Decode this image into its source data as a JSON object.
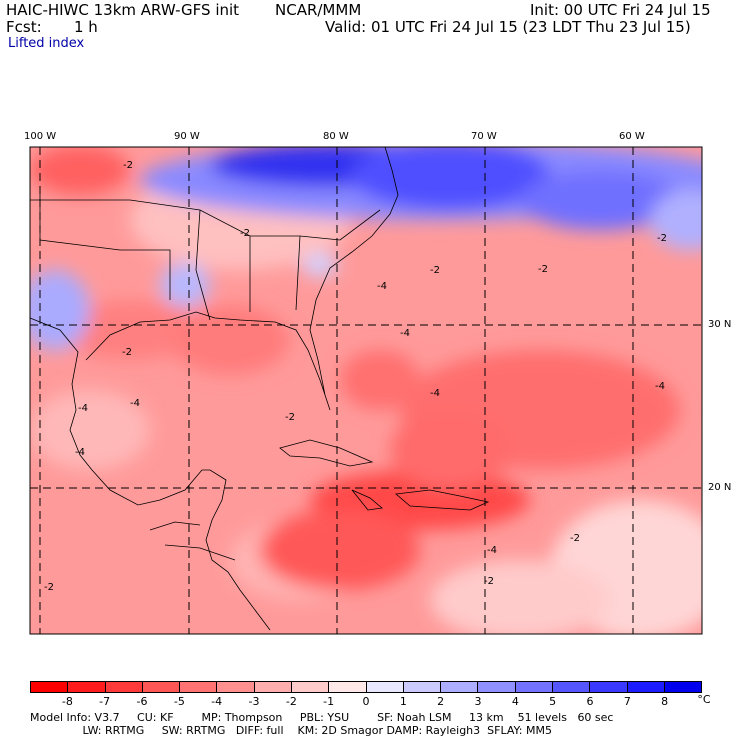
{
  "header": {
    "model": "HAIC-HIWC 13km ARW-GFS init",
    "org": "NCAR/MMM",
    "fcst_label": "Fcst:",
    "fcst_value": "1 h",
    "init": "Init: 00 UTC Fri 24 Jul 15",
    "valid": "Valid: 01 UTC Fri 24 Jul 15 (23 LDT Thu 23 Jul 15)",
    "field": "Lifted index"
  },
  "map": {
    "lon_labels": [
      "100 W",
      "90 W",
      "80 W",
      "70 W",
      "60 W"
    ],
    "lat_labels": [
      "30 N",
      "20 N"
    ],
    "contour_labels": [
      "-2",
      "-2",
      "-2",
      "-2",
      "-2",
      "-2",
      "-2",
      "-2",
      "-2",
      "-2",
      "-4",
      "-4",
      "-4",
      "-4",
      "-4",
      "-4",
      "-4",
      "-4"
    ],
    "colors": {
      "negative_max": "#ff0000",
      "positive_max": "#0000ee",
      "neutral": "#ffffff",
      "gridline": "#000000"
    }
  },
  "colorbar": {
    "ticks": [
      "-8",
      "-7",
      "-6",
      "-5",
      "-4",
      "-3",
      "-2",
      "-1",
      "0",
      "1",
      "2",
      "3",
      "4",
      "5",
      "6",
      "7",
      "8"
    ],
    "unit": "°C",
    "colors": [
      "#ff0000",
      "#ff1c1c",
      "#ff3a3a",
      "#ff5656",
      "#ff7373",
      "#ff9090",
      "#ffaeae",
      "#ffcbcb",
      "#ffe8e8",
      "#e8e8ff",
      "#cbcbff",
      "#aeaeff",
      "#9090ff",
      "#7373ff",
      "#5656ff",
      "#3a3aff",
      "#1c1cff",
      "#0000ee"
    ]
  },
  "footer": {
    "line1": "Model Info: V3.7     CU: KF        MP: Thompson     PBL: YSU        SF: Noah LSM     13 km    51 levels   60 sec",
    "line2": "               LW: RRTMG     SW: RRTMG   DIFF: full    KM: 2D Smagor DAMP: Rayleigh3  SFLAY: MM5"
  }
}
